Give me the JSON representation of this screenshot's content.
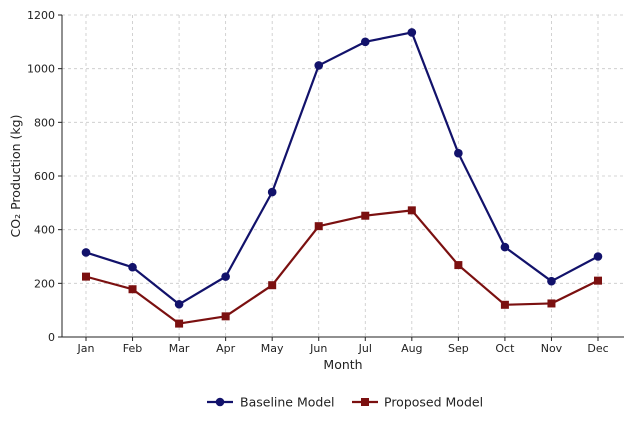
{
  "chart_data": {
    "type": "line",
    "title": "",
    "xlabel": "Month",
    "ylabel": "CO₂ Production (kg)",
    "categories": [
      "Jan",
      "Feb",
      "Mar",
      "Apr",
      "May",
      "Jun",
      "Jul",
      "Aug",
      "Sep",
      "Oct",
      "Nov",
      "Dec"
    ],
    "ylim": [
      0,
      1200
    ],
    "yticks": [
      0,
      200,
      400,
      600,
      800,
      1000,
      1200
    ],
    "ytick_labels": [
      "0",
      "200",
      "400",
      "600",
      "800",
      "1000",
      "1200"
    ],
    "grid": true,
    "legend_position": "bottom-center",
    "series": [
      {
        "name": "Baseline Model",
        "color": "#12126b",
        "marker": "circle",
        "values": [
          315,
          260,
          122,
          225,
          540,
          1012,
          1100,
          1135,
          685,
          335,
          208,
          300
        ]
      },
      {
        "name": "Proposed Model",
        "color": "#7b1010",
        "marker": "square",
        "values": [
          225,
          178,
          50,
          77,
          193,
          413,
          452,
          472,
          268,
          120,
          125,
          210
        ]
      }
    ]
  }
}
